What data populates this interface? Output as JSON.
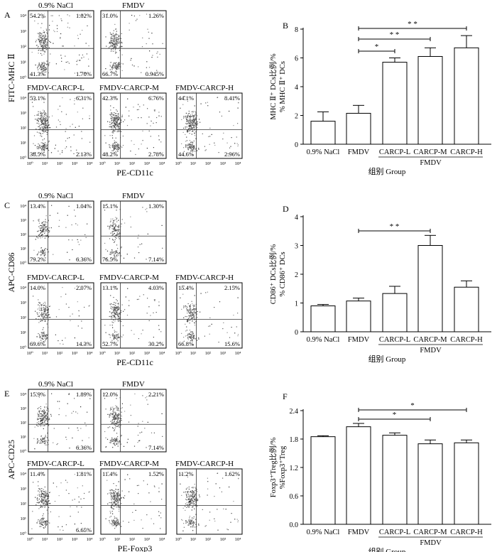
{
  "panels": [
    {
      "letter": "A",
      "yaxis_label": "FITC-MHC Ⅱ",
      "xaxis_label": "PE-CD11c",
      "plots": [
        {
          "title": "0.9%  NaCl",
          "ul": "54.2%",
          "ur": "1.02%",
          "ll": "41.3%",
          "lr": "1.70%",
          "density": 0.85
        },
        {
          "title": "FMDV",
          "ul": "31.0%",
          "ur": "1.26%",
          "ll": "66.7%",
          "lr": "0.945%",
          "density": 0.75
        },
        {
          "title": "FMDV-CARCP-L",
          "ul": "53.1%",
          "ur": "6.31%",
          "ll": "38.5%",
          "lr": "2.13%",
          "density": 0.9
        },
        {
          "title": "FMDV-CARCP-M",
          "ul": "42.3%",
          "ur": "6.76%",
          "ll": "48.2%",
          "lr": "2.78%",
          "density": 0.9
        },
        {
          "title": "FMDV-CARCP-H",
          "ul": "44.1%",
          "ur": "8.41%",
          "ll": "44.6%",
          "lr": "2.96%",
          "density": 0.9
        }
      ]
    },
    {
      "letter": "C",
      "yaxis_label": "APC-CD86",
      "xaxis_label": "PE-CD11c",
      "plots": [
        {
          "title": "0.9%  NaCl",
          "ul": "13.4%",
          "ur": "1.04%",
          "ll": "79.2%",
          "lr": "6.36%",
          "density": 0.5
        },
        {
          "title": "FMDV",
          "ul": "15.1%",
          "ur": "1.30%",
          "ll": "76.5%",
          "lr": "7.14%",
          "density": 0.5
        },
        {
          "title": "FMDV-CARCP-L",
          "ul": "14.0%",
          "ur": "2.07%",
          "ll": "69.6%",
          "lr": "14.3%",
          "density": 0.6
        },
        {
          "title": "FMDV-CARCP-M",
          "ul": "13.1%",
          "ur": "4.03%",
          "ll": "52.7%",
          "lr": "30.2%",
          "density": 0.6
        },
        {
          "title": "FMDV-CARCP-H",
          "ul": "15.4%",
          "ur": "2.15%",
          "ll": "66.8%",
          "lr": "15.6%",
          "density": 0.6
        }
      ]
    },
    {
      "letter": "E",
      "yaxis_label": "APC-CD25",
      "xaxis_label": "PE-Foxp3",
      "plots": [
        {
          "title": "0.9%  NaCl",
          "ul": "15.9%",
          "ur": "1.89%",
          "ll": "",
          "lr": "6.36%",
          "density": 0.7
        },
        {
          "title": "FMDV",
          "ul": "12.0%",
          "ur": "2.21%",
          "ll": "",
          "lr": "7.14%",
          "density": 0.7
        },
        {
          "title": "FMDV-CARCP-L",
          "ul": "11.4%",
          "ur": "1.81%",
          "ll": "",
          "lr": "6.65%",
          "density": 0.75
        },
        {
          "title": "FMDV-CARCP-M",
          "ul": "11.4%",
          "ur": "1.52%",
          "ll": "",
          "lr": "",
          "density": 0.75
        },
        {
          "title": "FMDV-CARCP-H",
          "ul": "11.2%",
          "ur": "1.62%",
          "ll": "",
          "lr": "",
          "density": 0.75
        }
      ]
    }
  ],
  "tick_labels": [
    "10⁰",
    "10¹",
    "10²",
    "10³",
    "10⁴"
  ],
  "chart_data": [
    {
      "type": "bar",
      "letter": "B",
      "categories": [
        "0.9% NaCl",
        "FMDV",
        "CARCP-L",
        "CARCP-M",
        "CARCP-H"
      ],
      "values": [
        1.6,
        2.15,
        5.7,
        6.1,
        6.7
      ],
      "errors": [
        0.65,
        0.55,
        0.3,
        0.6,
        0.85
      ],
      "ylim": [
        0,
        8
      ],
      "yticks": [
        0,
        2,
        4,
        6,
        8
      ],
      "ylabel_cn": "MHC Ⅱ⁺ DCs比例/%",
      "ylabel_en": "% MHC Ⅱ⁺ DCs",
      "xlabel": "组别  Group",
      "group_label": "FMDV",
      "group_span": [
        2,
        4
      ],
      "significance": [
        {
          "from": 1,
          "to": 2,
          "label": "*"
        },
        {
          "from": 1,
          "to": 3,
          "label": "* *"
        },
        {
          "from": 1,
          "to": 4,
          "label": "* *"
        }
      ]
    },
    {
      "type": "bar",
      "letter": "D",
      "categories": [
        "0.9% NaCl",
        "FMDV",
        "CARCP-L",
        "CARCP-M",
        "CARCP-H"
      ],
      "values": [
        0.9,
        1.07,
        1.33,
        3.0,
        1.55
      ],
      "errors": [
        0.05,
        0.1,
        0.25,
        0.35,
        0.22
      ],
      "ylim": [
        0,
        4
      ],
      "yticks": [
        0,
        1,
        2,
        3,
        4
      ],
      "ylabel_cn": "CD86⁺ DCs比例/%",
      "ylabel_en": "% CD86⁺ DCs",
      "xlabel": "组别  Group",
      "group_label": "FMDV",
      "group_span": [
        2,
        4
      ],
      "significance": [
        {
          "from": 1,
          "to": 3,
          "label": "* *"
        }
      ]
    },
    {
      "type": "bar",
      "letter": "F",
      "categories": [
        "0.9% NaCl",
        "FMDV",
        "CARCP-L",
        "CARCP-M",
        "CARCP-H"
      ],
      "values": [
        1.85,
        2.06,
        1.88,
        1.7,
        1.72
      ],
      "errors": [
        0.02,
        0.07,
        0.05,
        0.08,
        0.06
      ],
      "ylim": [
        0,
        2.4
      ],
      "yticks": [
        0.0,
        0.6,
        1.2,
        1.8,
        2.4
      ],
      "ylabel_cn": "Foxp3⁺Treg比例/%",
      "ylabel_en": "%Foxp3⁺Treg",
      "xlabel": "组别  Group",
      "group_label": "FMDV",
      "group_span": [
        2,
        4
      ],
      "significance": [
        {
          "from": 1,
          "to": 3,
          "label": "*"
        },
        {
          "from": 1,
          "to": 4,
          "label": "*"
        }
      ]
    }
  ]
}
